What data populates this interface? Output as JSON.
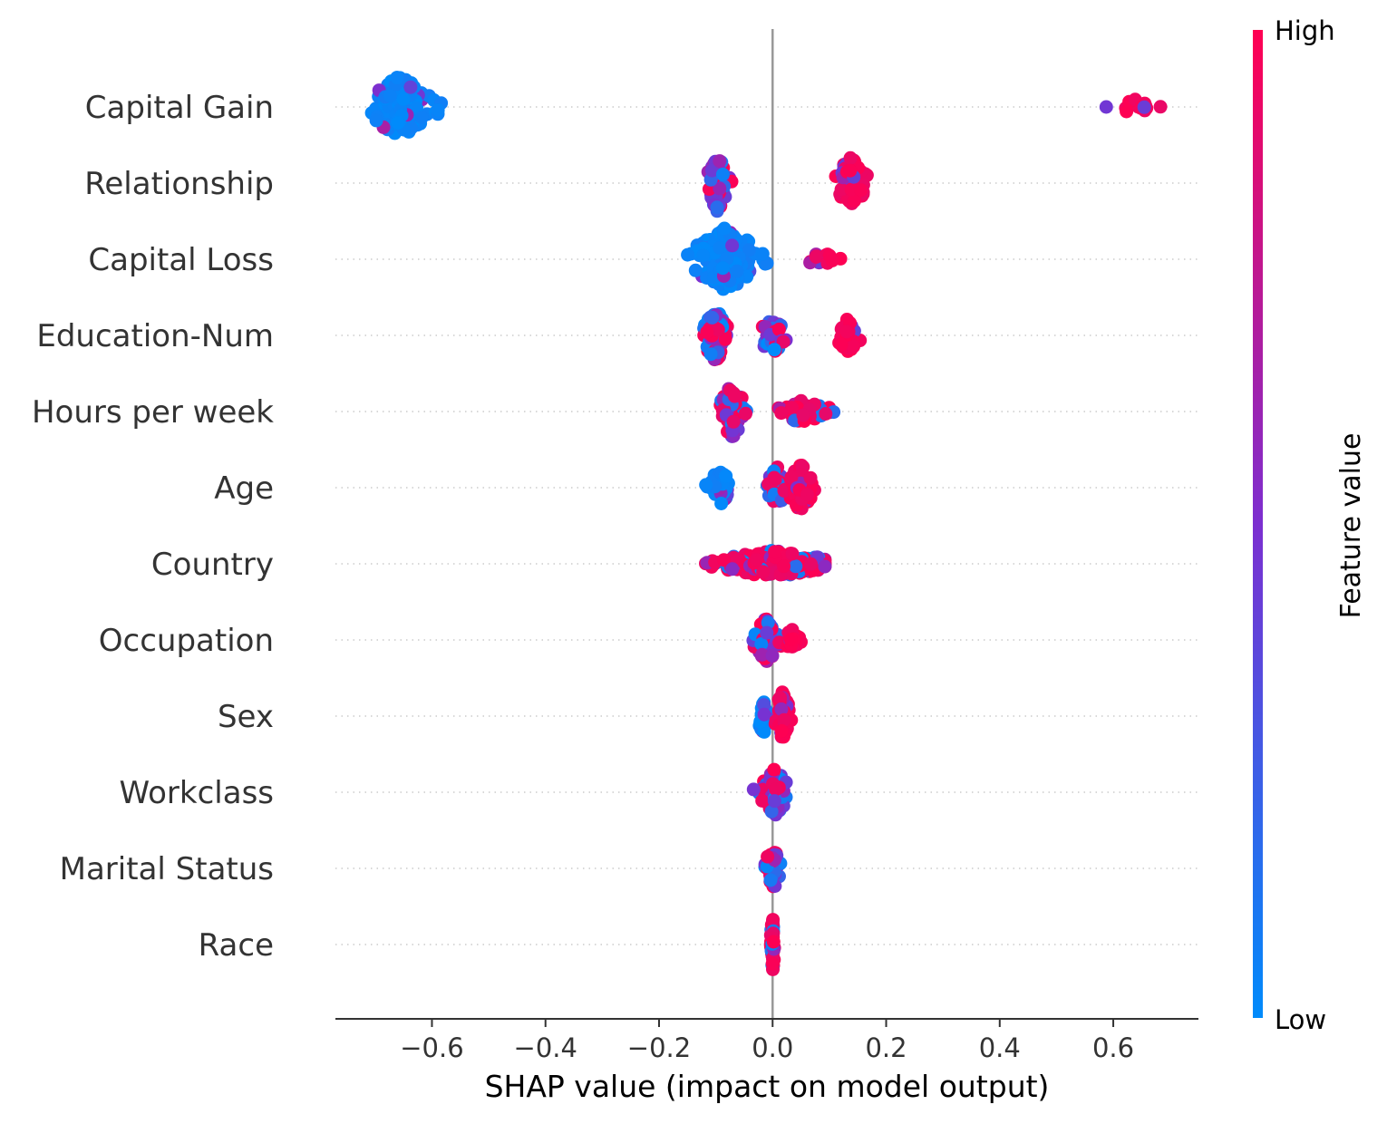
{
  "chart_data": {
    "type": "scatter",
    "subtype": "shap-beeswarm",
    "xlabel": "SHAP value (impact on model output)",
    "xlim": [
      -0.77,
      0.75
    ],
    "xticks": [
      -0.6,
      -0.4,
      -0.2,
      0.0,
      0.2,
      0.4,
      0.6
    ],
    "xtick_labels": [
      "−0.6",
      "−0.4",
      "−0.2",
      "0.0",
      "0.2",
      "0.4",
      "0.6"
    ],
    "zero_line": 0.0,
    "grid": "dotted horizontal lines per feature",
    "colorbar": {
      "title": "Feature value",
      "high_label": "High",
      "low_label": "Low",
      "high_color": "#ff0052",
      "low_color": "#008bfb",
      "placement": "right"
    },
    "features": [
      {
        "name": "Capital Gain",
        "clusters": [
          {
            "center": -0.655,
            "spread": 0.045,
            "height": 0.85,
            "color": "low",
            "n": 140
          },
          {
            "center": 0.645,
            "spread": 0.03,
            "height": 0.25,
            "color": "high",
            "n": 14,
            "mix": 0.15
          }
        ]
      },
      {
        "name": "Relationship",
        "clusters": [
          {
            "center": -0.097,
            "spread": 0.014,
            "height": 0.8,
            "color": "mixed",
            "n": 70
          },
          {
            "center": 0.138,
            "spread": 0.022,
            "height": 0.7,
            "color": "high",
            "n": 60
          }
        ]
      },
      {
        "name": "Capital Loss",
        "clusters": [
          {
            "center": -0.083,
            "spread": 0.05,
            "height": 0.85,
            "color": "low",
            "n": 140
          },
          {
            "center": 0.087,
            "spread": 0.022,
            "height": 0.2,
            "color": "high",
            "n": 14
          }
        ]
      },
      {
        "name": "Education-Num",
        "clusters": [
          {
            "center": -0.1,
            "spread": 0.018,
            "height": 0.7,
            "color": "mixed",
            "n": 70
          },
          {
            "center": 0.0,
            "spread": 0.02,
            "height": 0.5,
            "color": "mixed",
            "n": 30
          },
          {
            "center": 0.133,
            "spread": 0.016,
            "height": 0.45,
            "color": "high",
            "n": 40
          }
        ]
      },
      {
        "name": "Hours per week",
        "clusters": [
          {
            "center": -0.072,
            "spread": 0.02,
            "height": 0.75,
            "color": "mixed",
            "n": 70
          },
          {
            "center": 0.055,
            "spread": 0.04,
            "height": 0.3,
            "color": "high-mixed",
            "n": 50
          }
        ]
      },
      {
        "name": "Age",
        "clusters": [
          {
            "center": -0.093,
            "spread": 0.017,
            "height": 0.5,
            "color": "low",
            "n": 40
          },
          {
            "center": 0.008,
            "spread": 0.015,
            "height": 0.55,
            "color": "mixed",
            "n": 40
          },
          {
            "center": 0.05,
            "spread": 0.018,
            "height": 0.65,
            "color": "high",
            "n": 50
          }
        ]
      },
      {
        "name": "Country",
        "clusters": [
          {
            "center": 0.0,
            "spread": 0.09,
            "height": 0.35,
            "color": "high-mixed",
            "n": 230,
            "min": -0.15,
            "max": 0.092
          }
        ]
      },
      {
        "name": "Occupation",
        "clusters": [
          {
            "center": -0.01,
            "spread": 0.018,
            "height": 0.6,
            "color": "mixed",
            "n": 60
          },
          {
            "center": 0.037,
            "spread": 0.014,
            "height": 0.3,
            "color": "high",
            "n": 22
          }
        ]
      },
      {
        "name": "Sex",
        "clusters": [
          {
            "center": -0.016,
            "spread": 0.01,
            "height": 0.45,
            "color": "low",
            "n": 40
          },
          {
            "center": 0.017,
            "spread": 0.011,
            "height": 0.65,
            "color": "high",
            "n": 60
          }
        ]
      },
      {
        "name": "Workclass",
        "clusters": [
          {
            "center": 0.003,
            "spread": 0.02,
            "height": 0.65,
            "color": "mixed",
            "n": 80
          }
        ]
      },
      {
        "name": "Marital Status",
        "clusters": [
          {
            "center": 0.0,
            "spread": 0.01,
            "height": 0.6,
            "color": "mixed",
            "n": 50
          }
        ]
      },
      {
        "name": "Race",
        "clusters": [
          {
            "center": 0.0,
            "spread": 0.003,
            "height": 0.75,
            "color": "high-mixed",
            "n": 50
          }
        ]
      }
    ]
  }
}
